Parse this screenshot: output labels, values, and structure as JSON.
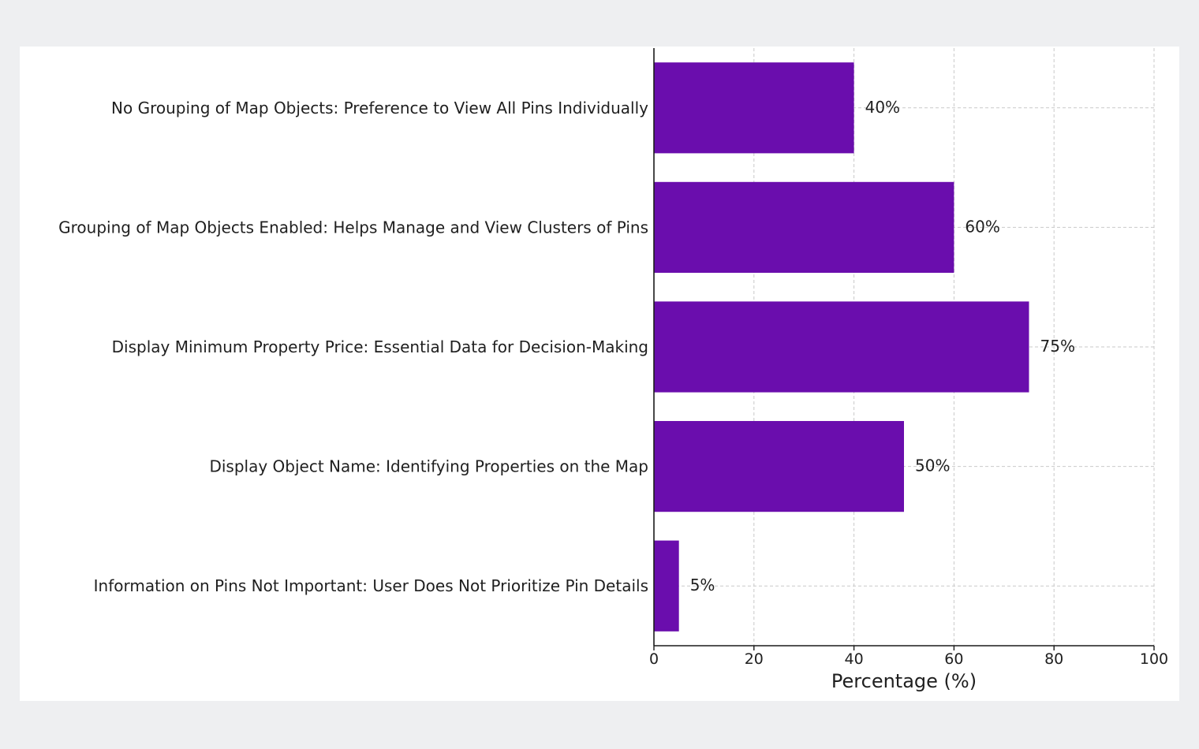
{
  "chart_data": {
    "type": "bar",
    "orientation": "horizontal",
    "categories": [
      "No Grouping of Map Objects: Preference to View All Pins Individually",
      "Grouping of Map Objects Enabled: Helps Manage and View Clusters of Pins",
      "Display Minimum Property Price: Essential Data for Decision-Making",
      "Display Object Name: Identifying Properties on the Map",
      "Information on Pins Not Important: User Does Not Prioritize Pin Details"
    ],
    "values": [
      40,
      60,
      75,
      50,
      5
    ],
    "value_labels": [
      "40%",
      "60%",
      "75%",
      "50%",
      "5%"
    ],
    "title": "",
    "xlabel": "Percentage (%)",
    "ylabel": "",
    "xlim": [
      0,
      100
    ],
    "xticks": [
      0,
      20,
      40,
      60,
      80,
      100
    ],
    "xtick_labels": [
      "0",
      "20",
      "40",
      "60",
      "80",
      "100"
    ],
    "grid": true,
    "bar_color": "#6a0dad"
  }
}
